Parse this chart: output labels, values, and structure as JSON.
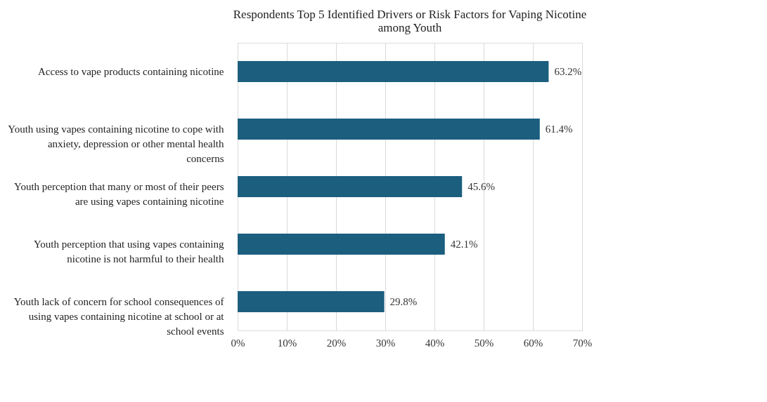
{
  "chart_data": {
    "type": "bar",
    "orientation": "horizontal",
    "title": "Respondents Top 5 Identified Drivers or Risk Factors for Vaping Nicotine among Youth",
    "categories": [
      "Access to vape products containing nicotine",
      "Youth using vapes containing nicotine to cope with anxiety, depression or other mental health concerns",
      "Youth perception that many or most of their peers are using vapes containing nicotine",
      "Youth perception that using vapes containing nicotine is not harmful to their health",
      "Youth lack of concern for school consequences of using vapes containing nicotine at school or at school events"
    ],
    "values": [
      63.2,
      61.4,
      45.6,
      42.1,
      29.8
    ],
    "value_labels": [
      "63.2%",
      "61.4%",
      "45.6%",
      "42.1%",
      "29.8%"
    ],
    "color": "#1b5e7e",
    "xlim": [
      0,
      70
    ],
    "xticks": [
      {
        "value": 0,
        "label": "0%"
      },
      {
        "value": 10,
        "label": "10%"
      },
      {
        "value": 20,
        "label": "20%"
      },
      {
        "value": 30,
        "label": "30%"
      },
      {
        "value": 40,
        "label": "40%"
      },
      {
        "value": 50,
        "label": "50%"
      },
      {
        "value": 60,
        "label": "60%"
      },
      {
        "value": 70,
        "label": "70%"
      }
    ],
    "grid": "x"
  }
}
